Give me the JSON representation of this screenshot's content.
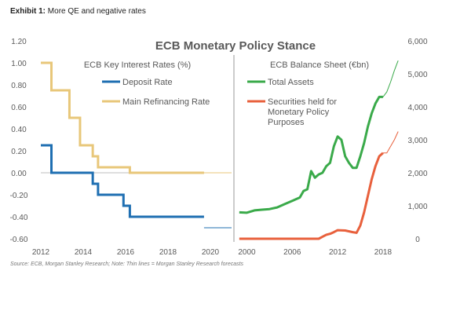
{
  "exhibit": {
    "label": "Exhibit 1:",
    "title": "More QE and negative rates"
  },
  "source": "Source: ECB, Morgan Stanley Research; Note: Thin lines = Morgan Stanley Research forecasts",
  "colors": {
    "deposit": "#1f6fb2",
    "mro": "#e8c77a",
    "total_assets": "#3aaa4a",
    "securities": "#e8603c",
    "divider": "#999999",
    "axis_text": "#595959"
  },
  "chart_data": [
    {
      "type": "line",
      "title": "ECB Monetary Policy Stance",
      "subtitle": "ECB Key Interest Rates (%)",
      "xlim": [
        2012,
        2021
      ],
      "ylim": [
        -0.6,
        1.2
      ],
      "xticks": [
        "2012",
        "2014",
        "2016",
        "2018",
        "2020"
      ],
      "yticks": [
        "1.20",
        "1.00",
        "0.80",
        "0.60",
        "0.40",
        "0.20",
        "0.00",
        "-0.20",
        "-0.40",
        "-0.60"
      ],
      "legend": "top-right",
      "series": [
        {
          "name": "Deposit Rate",
          "color_key": "deposit",
          "step": true,
          "x": [
            2012.0,
            2012.5,
            2014.45,
            2014.7,
            2015.9,
            2016.2,
            2019.7
          ],
          "y": [
            0.25,
            0.0,
            -0.1,
            -0.2,
            -0.3,
            -0.4,
            -0.4
          ],
          "forecast_x": [
            2019.7,
            2021.0
          ],
          "forecast_y": [
            -0.5,
            -0.5
          ]
        },
        {
          "name": "Main Refinancing Rate",
          "color_key": "mro",
          "step": true,
          "x": [
            2012.0,
            2012.5,
            2013.35,
            2013.85,
            2014.45,
            2014.7,
            2016.2,
            2019.7
          ],
          "y": [
            1.0,
            0.75,
            0.5,
            0.25,
            0.15,
            0.05,
            0.0,
            0.0
          ],
          "forecast_x": [
            2019.7,
            2021.0
          ],
          "forecast_y": [
            0.0,
            0.0
          ]
        }
      ]
    },
    {
      "type": "line",
      "subtitle": "ECB Balance Sheet (€bn)",
      "xlim": [
        1998.5,
        2020.5
      ],
      "ylim": [
        0,
        6000
      ],
      "xticks": [
        "2000",
        "2006",
        "2012",
        "2018"
      ],
      "yticks": [
        "6,000",
        "5,000",
        "4,000",
        "3,000",
        "2,000",
        "1,000",
        "0"
      ],
      "legend": "top-left",
      "series": [
        {
          "name": "Total Assets",
          "color_key": "total_assets",
          "x": [
            1999,
            2000,
            2001,
            2002,
            2003,
            2004,
            2005,
            2006,
            2007,
            2007.5,
            2008,
            2008.5,
            2009,
            2009.5,
            2010,
            2010.5,
            2011,
            2011.5,
            2012,
            2012.5,
            2013,
            2013.5,
            2014,
            2014.5,
            2015,
            2015.5,
            2016,
            2016.5,
            2017,
            2017.5,
            2018
          ],
          "y": [
            800,
            790,
            860,
            880,
            900,
            950,
            1050,
            1150,
            1250,
            1450,
            1500,
            2050,
            1850,
            1950,
            2000,
            2200,
            2300,
            2800,
            3100,
            3000,
            2500,
            2300,
            2150,
            2150,
            2500,
            2900,
            3400,
            3800,
            4100,
            4300,
            4300
          ],
          "forecast_x": [
            2018,
            2018.5,
            2019,
            2019.5,
            2020
          ],
          "forecast_y": [
            4300,
            4450,
            4750,
            5100,
            5400
          ]
        },
        {
          "name": "Securities held for Monetary Policy Purposes",
          "color_key": "securities",
          "x": [
            1999,
            2009.5,
            2010,
            2010.5,
            2011,
            2011.5,
            2012,
            2013,
            2014,
            2014.5,
            2015,
            2015.5,
            2016,
            2016.5,
            2017,
            2017.5,
            2018
          ],
          "y": [
            0,
            0,
            60,
            120,
            150,
            200,
            260,
            250,
            200,
            180,
            400,
            800,
            1300,
            1800,
            2200,
            2500,
            2600
          ],
          "forecast_x": [
            2018,
            2018.5,
            2019,
            2019.5,
            2020
          ],
          "forecast_y": [
            2600,
            2600,
            2800,
            3000,
            3250
          ]
        }
      ]
    }
  ]
}
